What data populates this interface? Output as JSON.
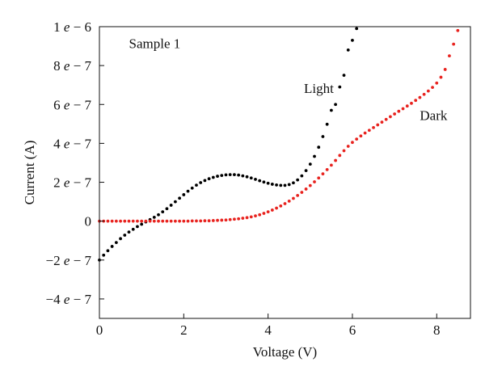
{
  "chart_data": {
    "type": "scatter",
    "title": "",
    "xlabel": "Voltage (V)",
    "ylabel": "Current (A)",
    "xlim": [
      0,
      8.8
    ],
    "ylim": [
      -5e-07,
      1e-06
    ],
    "x_ticks": [
      0,
      2,
      4,
      6,
      8
    ],
    "x_tick_labels": [
      "0",
      "2",
      "4",
      "6",
      "8"
    ],
    "y_ticks": [
      -4e-07,
      -2e-07,
      0,
      2e-07,
      4e-07,
      6e-07,
      8e-07,
      1e-06
    ],
    "y_tick_labels": [
      {
        "mant": "−4",
        "exp": "−7"
      },
      {
        "mant": "−2",
        "exp": "−7"
      },
      {
        "mant": "0",
        "exp": ""
      },
      {
        "mant": "2",
        "exp": "−7"
      },
      {
        "mant": "4",
        "exp": "−7"
      },
      {
        "mant": "6",
        "exp": "−7"
      },
      {
        "mant": "8",
        "exp": "−7"
      },
      {
        "mant": "1",
        "exp": "−6"
      }
    ],
    "grid": false,
    "annotations": [
      {
        "text": "Sample 1",
        "x": 0.7,
        "y": 8.9e-07
      },
      {
        "text": "Light",
        "x": 4.85,
        "y": 6.6e-07
      },
      {
        "text": "Dark",
        "x": 7.6,
        "y": 5.2e-07
      }
    ],
    "series": [
      {
        "name": "Light",
        "color": "#000000",
        "x": [
          0.0,
          0.1,
          0.2,
          0.3,
          0.4,
          0.5,
          0.6,
          0.7,
          0.8,
          0.9,
          1.0,
          1.1,
          1.2,
          1.3,
          1.4,
          1.5,
          1.6,
          1.7,
          1.8,
          1.9,
          2.0,
          2.1,
          2.2,
          2.3,
          2.4,
          2.5,
          2.6,
          2.7,
          2.8,
          2.9,
          3.0,
          3.1,
          3.2,
          3.3,
          3.4,
          3.5,
          3.6,
          3.7,
          3.8,
          3.9,
          4.0,
          4.1,
          4.2,
          4.3,
          4.4,
          4.5,
          4.6,
          4.7,
          4.8,
          4.9,
          5.0,
          5.1,
          5.2,
          5.3,
          5.4,
          5.5,
          5.6,
          5.7,
          5.8,
          5.9,
          6.0,
          6.1
        ],
        "y": [
          -2e-07,
          -1.75e-07,
          -1.52e-07,
          -1.3e-07,
          -1.1e-07,
          -9e-08,
          -7.2e-08,
          -5.6e-08,
          -4.2e-08,
          -2.8e-08,
          -1.6e-08,
          -4e-09,
          8e-09,
          2e-08,
          3.3e-08,
          4.8e-08,
          6.4e-08,
          8.2e-08,
          1e-07,
          1.18e-07,
          1.36e-07,
          1.54e-07,
          1.7e-07,
          1.85e-07,
          1.98e-07,
          2.09e-07,
          2.18e-07,
          2.25e-07,
          2.31e-07,
          2.35e-07,
          2.38e-07,
          2.39e-07,
          2.39e-07,
          2.37e-07,
          2.33e-07,
          2.28e-07,
          2.22e-07,
          2.15e-07,
          2.08e-07,
          2.01e-07,
          1.95e-07,
          1.9e-07,
          1.86e-07,
          1.84e-07,
          1.84e-07,
          1.88e-07,
          1.97e-07,
          2.12e-07,
          2.33e-07,
          2.6e-07,
          2.93e-07,
          3.33e-07,
          3.8e-07,
          4.35e-07,
          4.98e-07,
          5.7e-07,
          6e-07,
          6.9e-07,
          7.5e-07,
          8.8e-07,
          9.3e-07,
          9.9e-07
        ]
      },
      {
        "name": "Dark",
        "color": "#e8231f",
        "x": [
          0.0,
          0.1,
          0.2,
          0.3,
          0.4,
          0.5,
          0.6,
          0.7,
          0.8,
          0.9,
          1.0,
          1.1,
          1.2,
          1.3,
          1.4,
          1.5,
          1.6,
          1.7,
          1.8,
          1.9,
          2.0,
          2.1,
          2.2,
          2.3,
          2.4,
          2.5,
          2.6,
          2.7,
          2.8,
          2.9,
          3.0,
          3.1,
          3.2,
          3.3,
          3.4,
          3.5,
          3.6,
          3.7,
          3.8,
          3.9,
          4.0,
          4.1,
          4.2,
          4.3,
          4.4,
          4.5,
          4.6,
          4.7,
          4.8,
          4.9,
          5.0,
          5.1,
          5.2,
          5.3,
          5.4,
          5.5,
          5.6,
          5.7,
          5.8,
          5.9,
          6.0,
          6.1,
          6.2,
          6.3,
          6.4,
          6.5,
          6.6,
          6.7,
          6.8,
          6.9,
          7.0,
          7.1,
          7.2,
          7.3,
          7.4,
          7.5,
          7.6,
          7.7,
          7.8,
          7.9,
          8.0,
          8.1,
          8.2,
          8.3,
          8.4,
          8.5
        ],
        "y": [
          0,
          0,
          0,
          0,
          0,
          0,
          0,
          0,
          0,
          0,
          0,
          0,
          0,
          0,
          0,
          0,
          0,
          0,
          0,
          0,
          0,
          0,
          1e-09,
          1e-09,
          1e-09,
          2e-09,
          2e-09,
          3e-09,
          4e-09,
          5e-09,
          6e-09,
          8e-09,
          1e-08,
          1.2e-08,
          1.5e-08,
          1.8e-08,
          2.2e-08,
          2.7e-08,
          3.3e-08,
          4e-08,
          4.8e-08,
          5.7e-08,
          6.7e-08,
          7.8e-08,
          9e-08,
          1.03e-07,
          1.17e-07,
          1.32e-07,
          1.48e-07,
          1.65e-07,
          1.83e-07,
          2.02e-07,
          2.22e-07,
          2.43e-07,
          2.65e-07,
          2.88e-07,
          3.12e-07,
          3.38e-07,
          3.62e-07,
          3.85e-07,
          4.05e-07,
          4.22e-07,
          4.38e-07,
          4.53e-07,
          4.67e-07,
          4.81e-07,
          4.95e-07,
          5.09e-07,
          5.23e-07,
          5.37e-07,
          5.51e-07,
          5.65e-07,
          5.78e-07,
          5.92e-07,
          6.06e-07,
          6.21e-07,
          6.36e-07,
          6.52e-07,
          6.69e-07,
          6.88e-07,
          7.1e-07,
          7.4e-07,
          7.8e-07,
          8.5e-07,
          9.1e-07,
          9.8e-07
        ]
      }
    ]
  }
}
